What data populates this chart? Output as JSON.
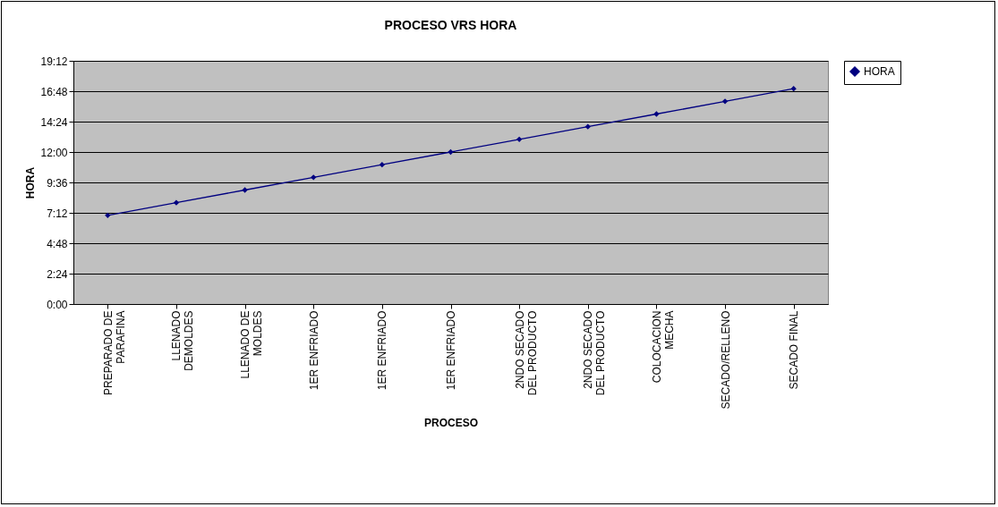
{
  "chart_data": {
    "type": "line",
    "title": "PROCESO VRS HORA",
    "xlabel": "PROCESO",
    "ylabel": "HORA",
    "categories": [
      "PREPARADO DE PARAFINA",
      "LLENADO DEMOLDES",
      "LLENADO DE MOLDES",
      "1ER ENFRIADO",
      "1ER ENFRIADO",
      "1ER ENFRIADO",
      "2NDO SECADO DEL PRODUCTO",
      "2NDO SECADO DEL PRODUCTO",
      "COLOCACION MECHA",
      "SECADO/RELLENO",
      "SECADO FINAL"
    ],
    "series": [
      {
        "name": "HORA",
        "color": "#000080",
        "values": [
          7,
          8,
          9,
          10,
          11,
          12,
          13,
          14,
          15,
          16,
          17
        ]
      }
    ],
    "ylim": [
      0,
      19.2
    ],
    "yticks": [
      {
        "value": 0,
        "label": "0:00"
      },
      {
        "value": 2.4,
        "label": "2:24"
      },
      {
        "value": 4.8,
        "label": "4:48"
      },
      {
        "value": 7.2,
        "label": "7:12"
      },
      {
        "value": 9.6,
        "label": "9:36"
      },
      {
        "value": 12,
        "label": "12:00"
      },
      {
        "value": 14.4,
        "label": "14:24"
      },
      {
        "value": 16.8,
        "label": "16:48"
      },
      {
        "value": 19.2,
        "label": "19:12"
      }
    ],
    "grid": "y",
    "legend": "right",
    "marker": "diamond",
    "line_style": "solid"
  }
}
